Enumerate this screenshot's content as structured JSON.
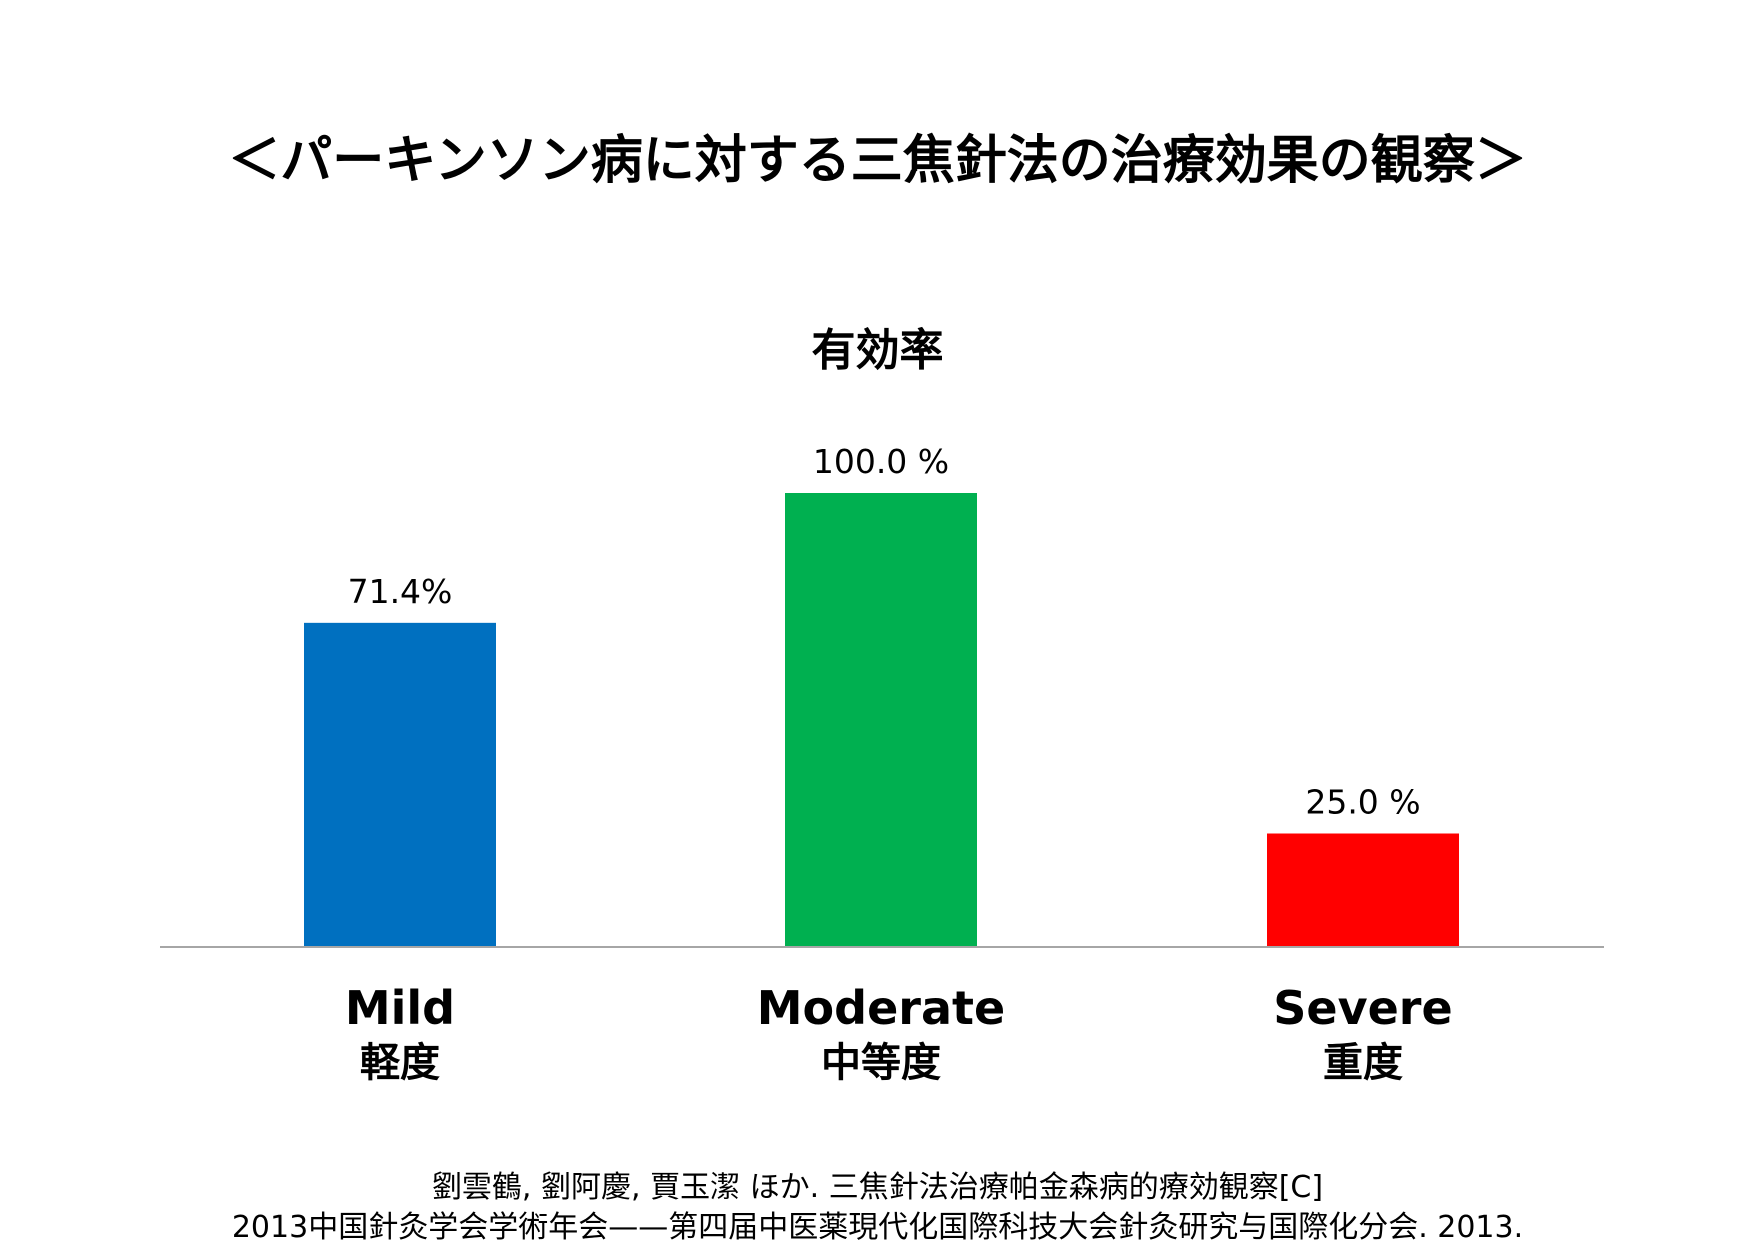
{
  "title": "＜パーキンソン病に対する三焦針法の治療効果の観察＞",
  "chart_data": {
    "type": "bar",
    "title": "有効率",
    "categories": [
      {
        "en": "Mild",
        "ja": "軽度"
      },
      {
        "en": "Moderate",
        "ja": "中等度"
      },
      {
        "en": "Severe",
        "ja": "重度"
      }
    ],
    "values": [
      71.4,
      100.0,
      25.0
    ],
    "data_labels": [
      "71.4%",
      "100.0 %",
      "25.0 %"
    ],
    "colors": [
      "#0070C0",
      "#00B050",
      "#FF0000"
    ],
    "xlabel": "",
    "ylabel": "",
    "ylim": [
      0,
      100
    ],
    "grid": false,
    "legend": "none"
  },
  "citation": {
    "line1": "劉雲鶴, 劉阿慶, 賈玉潔 ほか. 三焦針法治療帕金森病的療効観察[C]",
    "line2": "2013中国針灸学会学術年会——第四届中医薬現代化国際科技大会針灸研究与国際化分会. 2013."
  }
}
